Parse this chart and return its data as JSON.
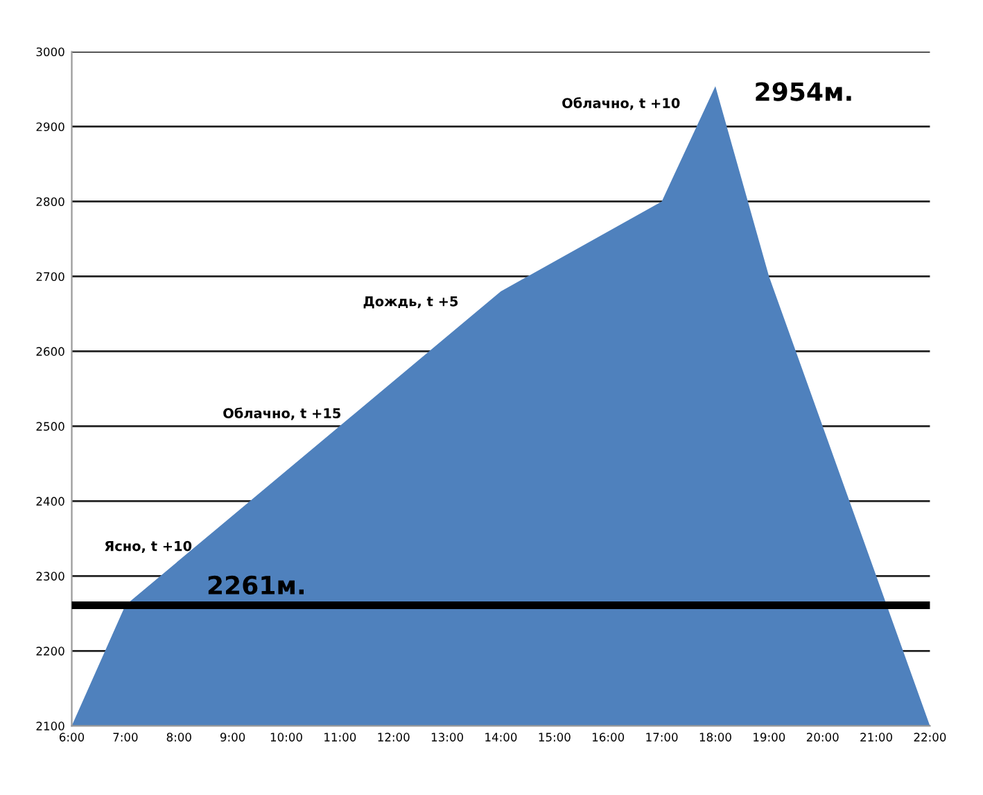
{
  "chart_data": {
    "type": "area",
    "x": [
      6,
      7,
      14,
      17,
      18,
      19,
      22
    ],
    "series": [
      {
        "color": "#4f81bd",
        "values": [
          2100,
          2261,
          2680,
          2800,
          2954,
          2700,
          2100
        ]
      }
    ],
    "xlim": [
      6,
      22
    ],
    "xticks": [
      {
        "value": 6,
        "label": "6:00"
      },
      {
        "value": 7,
        "label": "7:00"
      },
      {
        "value": 8,
        "label": "8:00"
      },
      {
        "value": 9,
        "label": "9:00"
      },
      {
        "value": 10,
        "label": "10:00"
      },
      {
        "value": 11,
        "label": "11:00"
      },
      {
        "value": 12,
        "label": "12:00"
      },
      {
        "value": 13,
        "label": "13:00"
      },
      {
        "value": 14,
        "label": "14:00"
      },
      {
        "value": 15,
        "label": "15:00"
      },
      {
        "value": 16,
        "label": "16:00"
      },
      {
        "value": 17,
        "label": "17:00"
      },
      {
        "value": 18,
        "label": "18:00"
      },
      {
        "value": 19,
        "label": "19:00"
      },
      {
        "value": 20,
        "label": "20:00"
      },
      {
        "value": 21,
        "label": "21:00"
      },
      {
        "value": 22,
        "label": "22:00"
      }
    ],
    "ylim": [
      2100,
      3000
    ],
    "yticks": [
      2100,
      2200,
      2300,
      2400,
      2500,
      2600,
      2700,
      2800,
      2900,
      3000
    ],
    "grid": "y",
    "ref_lines": [
      {
        "axis": "y",
        "value": 2261,
        "label": "2261м.",
        "color": "#000000"
      }
    ],
    "annotations": [
      "Ясно, t +10",
      "Облачно, t +15",
      "Дождь, t +5",
      "Облачно, t +10",
      {
        "text": "2954м.",
        "x": 18,
        "y": 2954
      }
    ]
  }
}
